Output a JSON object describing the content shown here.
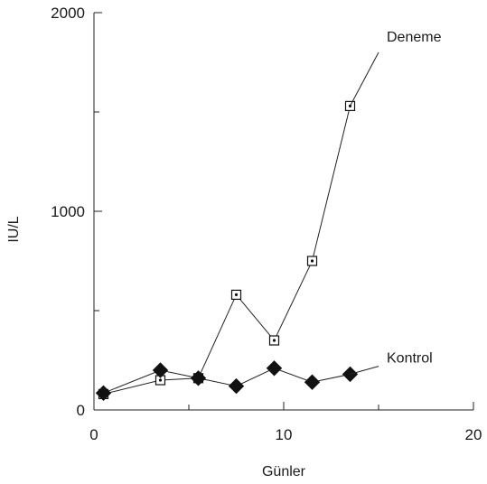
{
  "chart_data": {
    "type": "line",
    "xlabel": "Günler",
    "ylabel": "IU/L",
    "xlim": [
      0,
      20
    ],
    "ylim": [
      0,
      2000
    ],
    "xticks": [
      0,
      10,
      20
    ],
    "xtick_labels": [
      "0",
      "10",
      "20"
    ],
    "yticks": [
      0,
      1000,
      2000
    ],
    "ytick_labels": [
      "0",
      "1000",
      "2000"
    ],
    "grid": false,
    "series": [
      {
        "name": "Deneme",
        "marker": "square-dot",
        "x": [
          0.5,
          3.5,
          5.5,
          7.5,
          9.5,
          11.5,
          13.5
        ],
        "y": [
          80,
          150,
          160,
          580,
          350,
          750,
          1530
        ],
        "label_anchor": [
          15.0,
          1800
        ]
      },
      {
        "name": "Kontrol",
        "marker": "diamond",
        "x": [
          0.5,
          3.5,
          5.5,
          7.5,
          9.5,
          11.5,
          13.5
        ],
        "y": [
          85,
          200,
          160,
          120,
          210,
          140,
          180
        ],
        "label_anchor": [
          15.0,
          220
        ]
      }
    ]
  }
}
